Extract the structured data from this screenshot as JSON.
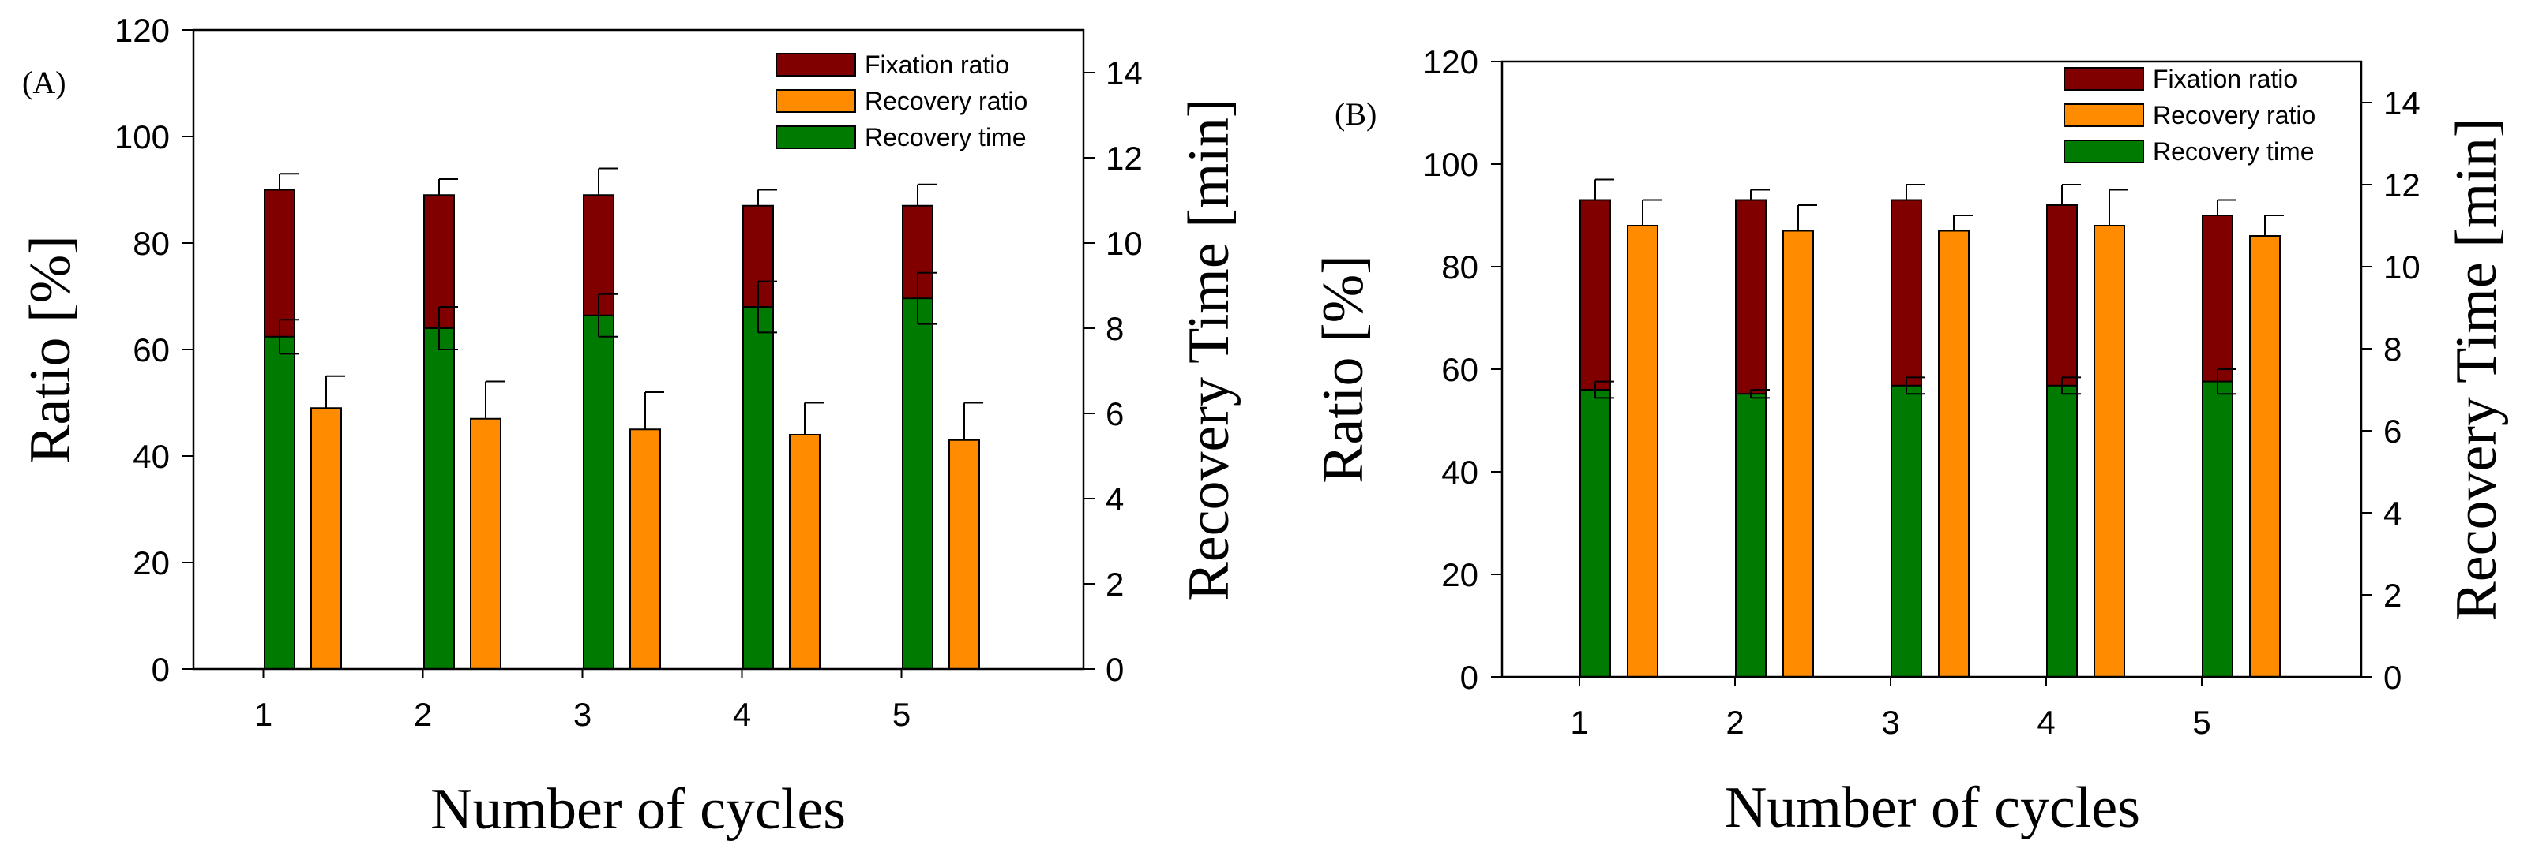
{
  "colors": {
    "fixation": "#800000",
    "recovery_ratio": "#ff8c00",
    "recovery_time": "#007a00"
  },
  "chart_data": [
    {
      "type": "bar",
      "panel_label": "(A)",
      "xlabel": "Number of cycles",
      "ylabel": "Ratio [%]",
      "y2label": "Recovery Time [min]",
      "categories": [
        "1",
        "2",
        "3",
        "4",
        "5"
      ],
      "ylim": [
        0,
        120
      ],
      "y2lim": [
        0,
        15
      ],
      "yticks": [
        "0",
        "20",
        "40",
        "60",
        "80",
        "100",
        "120"
      ],
      "y2ticks": [
        "0",
        "2",
        "4",
        "6",
        "8",
        "10",
        "12",
        "14"
      ],
      "legend_position": "top-right",
      "series": [
        {
          "name": "Fixation ratio",
          "axis": "left",
          "values": [
            90,
            89,
            89,
            87,
            87
          ],
          "errors": [
            3,
            3,
            5,
            3,
            4
          ]
        },
        {
          "name": "Recovery ratio",
          "axis": "left",
          "values": [
            49,
            47,
            45,
            44,
            43
          ],
          "errors": [
            6,
            7,
            7,
            6,
            7
          ]
        },
        {
          "name": "Recovery time",
          "axis": "right",
          "values": [
            7.8,
            8.0,
            8.3,
            8.5,
            8.7
          ],
          "errors": [
            0.4,
            0.5,
            0.5,
            0.6,
            0.6
          ]
        }
      ]
    },
    {
      "type": "bar",
      "panel_label": "(B)",
      "xlabel": "Number of cycles",
      "ylabel": "Ratio [%]",
      "y2label": "Recovery Time [min]",
      "categories": [
        "1",
        "2",
        "3",
        "4",
        "5"
      ],
      "ylim": [
        0,
        120
      ],
      "y2lim": [
        0,
        15
      ],
      "yticks": [
        "0",
        "20",
        "40",
        "60",
        "80",
        "100",
        "120"
      ],
      "y2ticks": [
        "0",
        "2",
        "4",
        "6",
        "8",
        "10",
        "12",
        "14"
      ],
      "legend_position": "top-right",
      "series": [
        {
          "name": "Fixation ratio",
          "axis": "left",
          "values": [
            93,
            93,
            93,
            92,
            90
          ],
          "errors": [
            4,
            2,
            3,
            4,
            3
          ]
        },
        {
          "name": "Recovery ratio",
          "axis": "left",
          "values": [
            88,
            87,
            87,
            88,
            86
          ],
          "errors": [
            5,
            5,
            3,
            7,
            4
          ]
        },
        {
          "name": "Recovery time",
          "axis": "right",
          "values": [
            7.0,
            6.9,
            7.1,
            7.1,
            7.2
          ],
          "errors": [
            0.2,
            0.1,
            0.2,
            0.2,
            0.3
          ]
        }
      ]
    }
  ]
}
